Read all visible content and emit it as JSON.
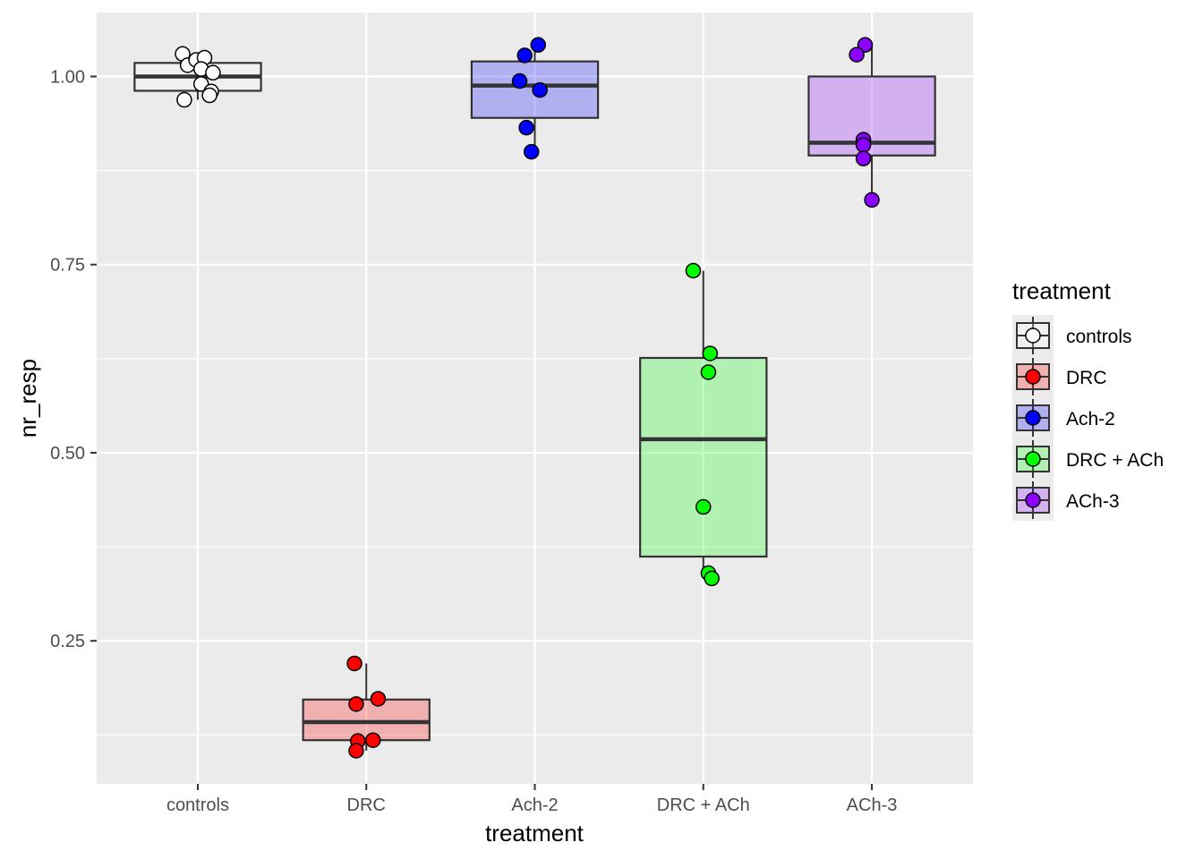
{
  "chart_data": {
    "type": "box",
    "xlabel": "treatment",
    "ylabel": "nr_resp",
    "ylim": [
      0.06,
      1.085
    ],
    "yticks": [
      0.25,
      0.5,
      0.75,
      1.0
    ],
    "ytick_labels": [
      "0.25",
      "0.50",
      "0.75",
      "1.00"
    ],
    "categories": [
      "controls",
      "DRC",
      "Ach-2",
      "DRC + ACh",
      "ACh-3"
    ],
    "legend": {
      "title": "treatment",
      "entries": [
        "controls",
        "DRC",
        "Ach-2",
        "DRC + ACh",
        "ACh-3"
      ],
      "position": "right"
    },
    "grid": true,
    "colors": [
      "#FFFFFF",
      "#FF0000",
      "#0000FF",
      "#00FF00",
      "#8B00FF"
    ],
    "boxes": [
      {
        "category": "controls",
        "q1": 0.981,
        "median": 1.0,
        "q3": 1.018,
        "whisker_low": 0.969,
        "whisker_high": 1.03
      },
      {
        "category": "DRC",
        "q1": 0.118,
        "median": 0.142,
        "q3": 0.172,
        "whisker_low": 0.104,
        "whisker_high": 0.22
      },
      {
        "category": "Ach-2",
        "q1": 0.945,
        "median": 0.988,
        "q3": 1.02,
        "whisker_low": 0.9,
        "whisker_high": 1.042
      },
      {
        "category": "DRC + ACh",
        "q1": 0.362,
        "median": 0.518,
        "q3": 0.626,
        "whisker_low": 0.333,
        "whisker_high": 0.742
      },
      {
        "category": "ACh-3",
        "q1": 0.895,
        "median": 0.912,
        "q3": 1.0,
        "whisker_low": 0.836,
        "whisker_high": 1.042
      }
    ],
    "points": [
      {
        "category": "controls",
        "values": [
          1.03,
          1.015,
          1.022,
          1.025,
          1.01,
          1.005,
          0.99,
          0.98,
          0.975,
          0.969
        ],
        "jitter": [
          -0.09,
          -0.06,
          -0.01,
          0.04,
          0.02,
          0.09,
          0.02,
          0.08,
          0.07,
          -0.08
        ]
      },
      {
        "category": "DRC",
        "values": [
          0.22,
          0.173,
          0.166,
          0.118,
          0.117,
          0.104
        ],
        "jitter": [
          -0.07,
          0.07,
          -0.06,
          0.04,
          -0.05,
          -0.06
        ]
      },
      {
        "category": "Ach-2",
        "values": [
          1.042,
          1.028,
          0.994,
          0.982,
          0.932,
          0.9
        ],
        "jitter": [
          0.02,
          -0.06,
          -0.09,
          0.03,
          -0.05,
          -0.02
        ]
      },
      {
        "category": "DRC + ACh",
        "values": [
          0.742,
          0.632,
          0.607,
          0.428,
          0.34,
          0.333
        ],
        "jitter": [
          -0.06,
          0.04,
          0.03,
          0.0,
          0.03,
          0.05
        ]
      },
      {
        "category": "ACh-3",
        "values": [
          1.042,
          1.029,
          0.916,
          0.909,
          0.891,
          0.836
        ],
        "jitter": [
          -0.04,
          -0.09,
          -0.05,
          -0.05,
          -0.05,
          0.0
        ]
      }
    ]
  }
}
